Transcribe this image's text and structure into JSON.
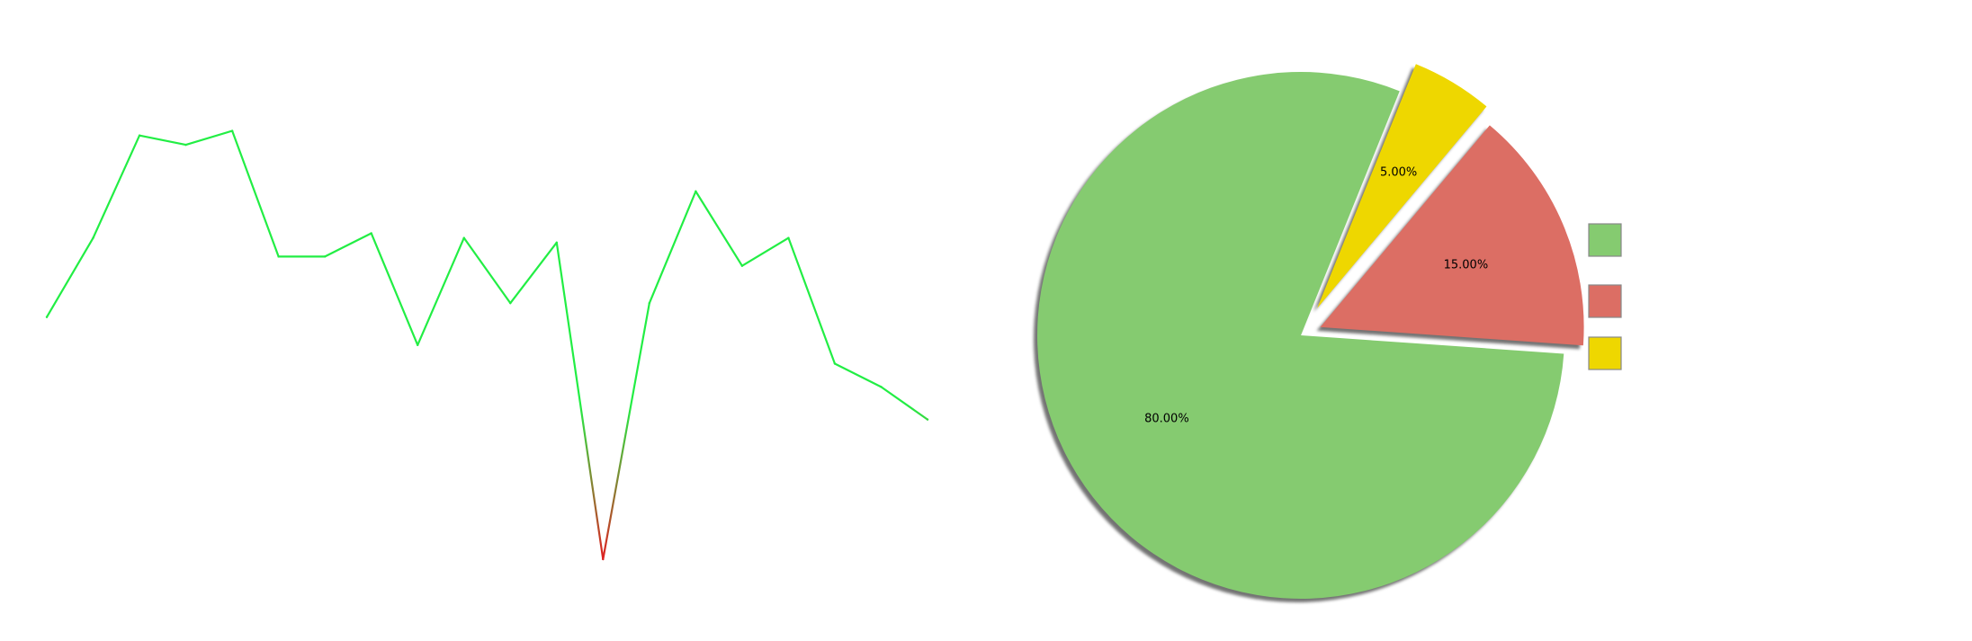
{
  "chart_data": [
    {
      "type": "line",
      "title": "",
      "xlabel": "",
      "ylabel": "",
      "grid": false,
      "x": [
        0,
        1,
        2,
        3,
        4,
        5,
        6,
        7,
        8,
        9,
        10,
        11,
        12,
        13,
        14,
        15,
        16,
        17,
        18,
        19
      ],
      "values": [
        0.52,
        0.69,
        0.91,
        0.89,
        0.92,
        0.65,
        0.65,
        0.7,
        0.46,
        0.69,
        0.55,
        0.68,
        0.0,
        0.55,
        0.79,
        0.63,
        0.69,
        0.42,
        0.37,
        0.3
      ],
      "ylim": [
        0.0,
        0.95
      ],
      "colors": {
        "high": "#22ee44",
        "low": "#dd2222"
      }
    },
    {
      "type": "pie",
      "title": "",
      "slices": [
        {
          "label": "80.00%",
          "value": 80,
          "color": "#85cb70",
          "explode": 0
        },
        {
          "label": "15.00%",
          "value": 15,
          "color": "#dc6e64",
          "explode": 0.08
        },
        {
          "label": "5.00%",
          "value": 5,
          "color": "#eed700",
          "explode": 0.12
        }
      ],
      "shadow": true,
      "legend": {
        "placement": "right",
        "entries": [
          {
            "color": "#85cb70"
          },
          {
            "color": "#dc6e64"
          },
          {
            "color": "#eed700"
          }
        ]
      }
    }
  ]
}
